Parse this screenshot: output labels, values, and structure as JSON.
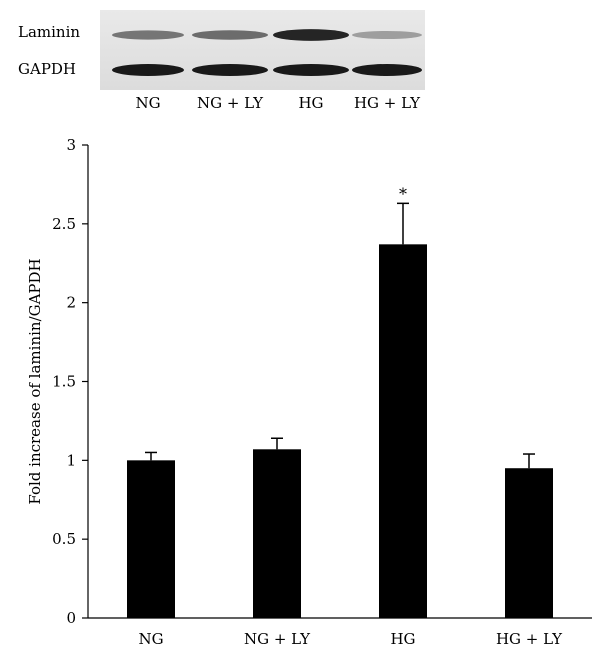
{
  "blot": {
    "row_labels": [
      "Laminin",
      "GAPDH"
    ],
    "lane_labels": [
      "NG",
      "NG + LY",
      "HG",
      "HG + LY"
    ],
    "laminin_band_intensity": [
      0.55,
      0.6,
      0.95,
      0.35
    ],
    "gapdh_band_intensity": [
      0.95,
      0.95,
      0.95,
      0.95
    ]
  },
  "chart_data": {
    "type": "bar",
    "categories": [
      "NG",
      "NG + LY",
      "HG",
      "HG + LY"
    ],
    "values": [
      1.0,
      1.07,
      2.37,
      0.95
    ],
    "error_bars": [
      0.05,
      0.07,
      0.26,
      0.09
    ],
    "significance_markers": [
      "",
      "",
      "*",
      ""
    ],
    "ylabel": "Fold increase of laminin/GAPDH",
    "xlabel": "",
    "ylim": [
      0,
      3
    ],
    "yticks": [
      0,
      0.5,
      1,
      1.5,
      2,
      2.5,
      3
    ],
    "ytick_labels": [
      "0",
      "0.5",
      "1",
      "1.5",
      "2",
      "2.5",
      "3"
    ],
    "bar_color": "#000000",
    "grid": false
  }
}
